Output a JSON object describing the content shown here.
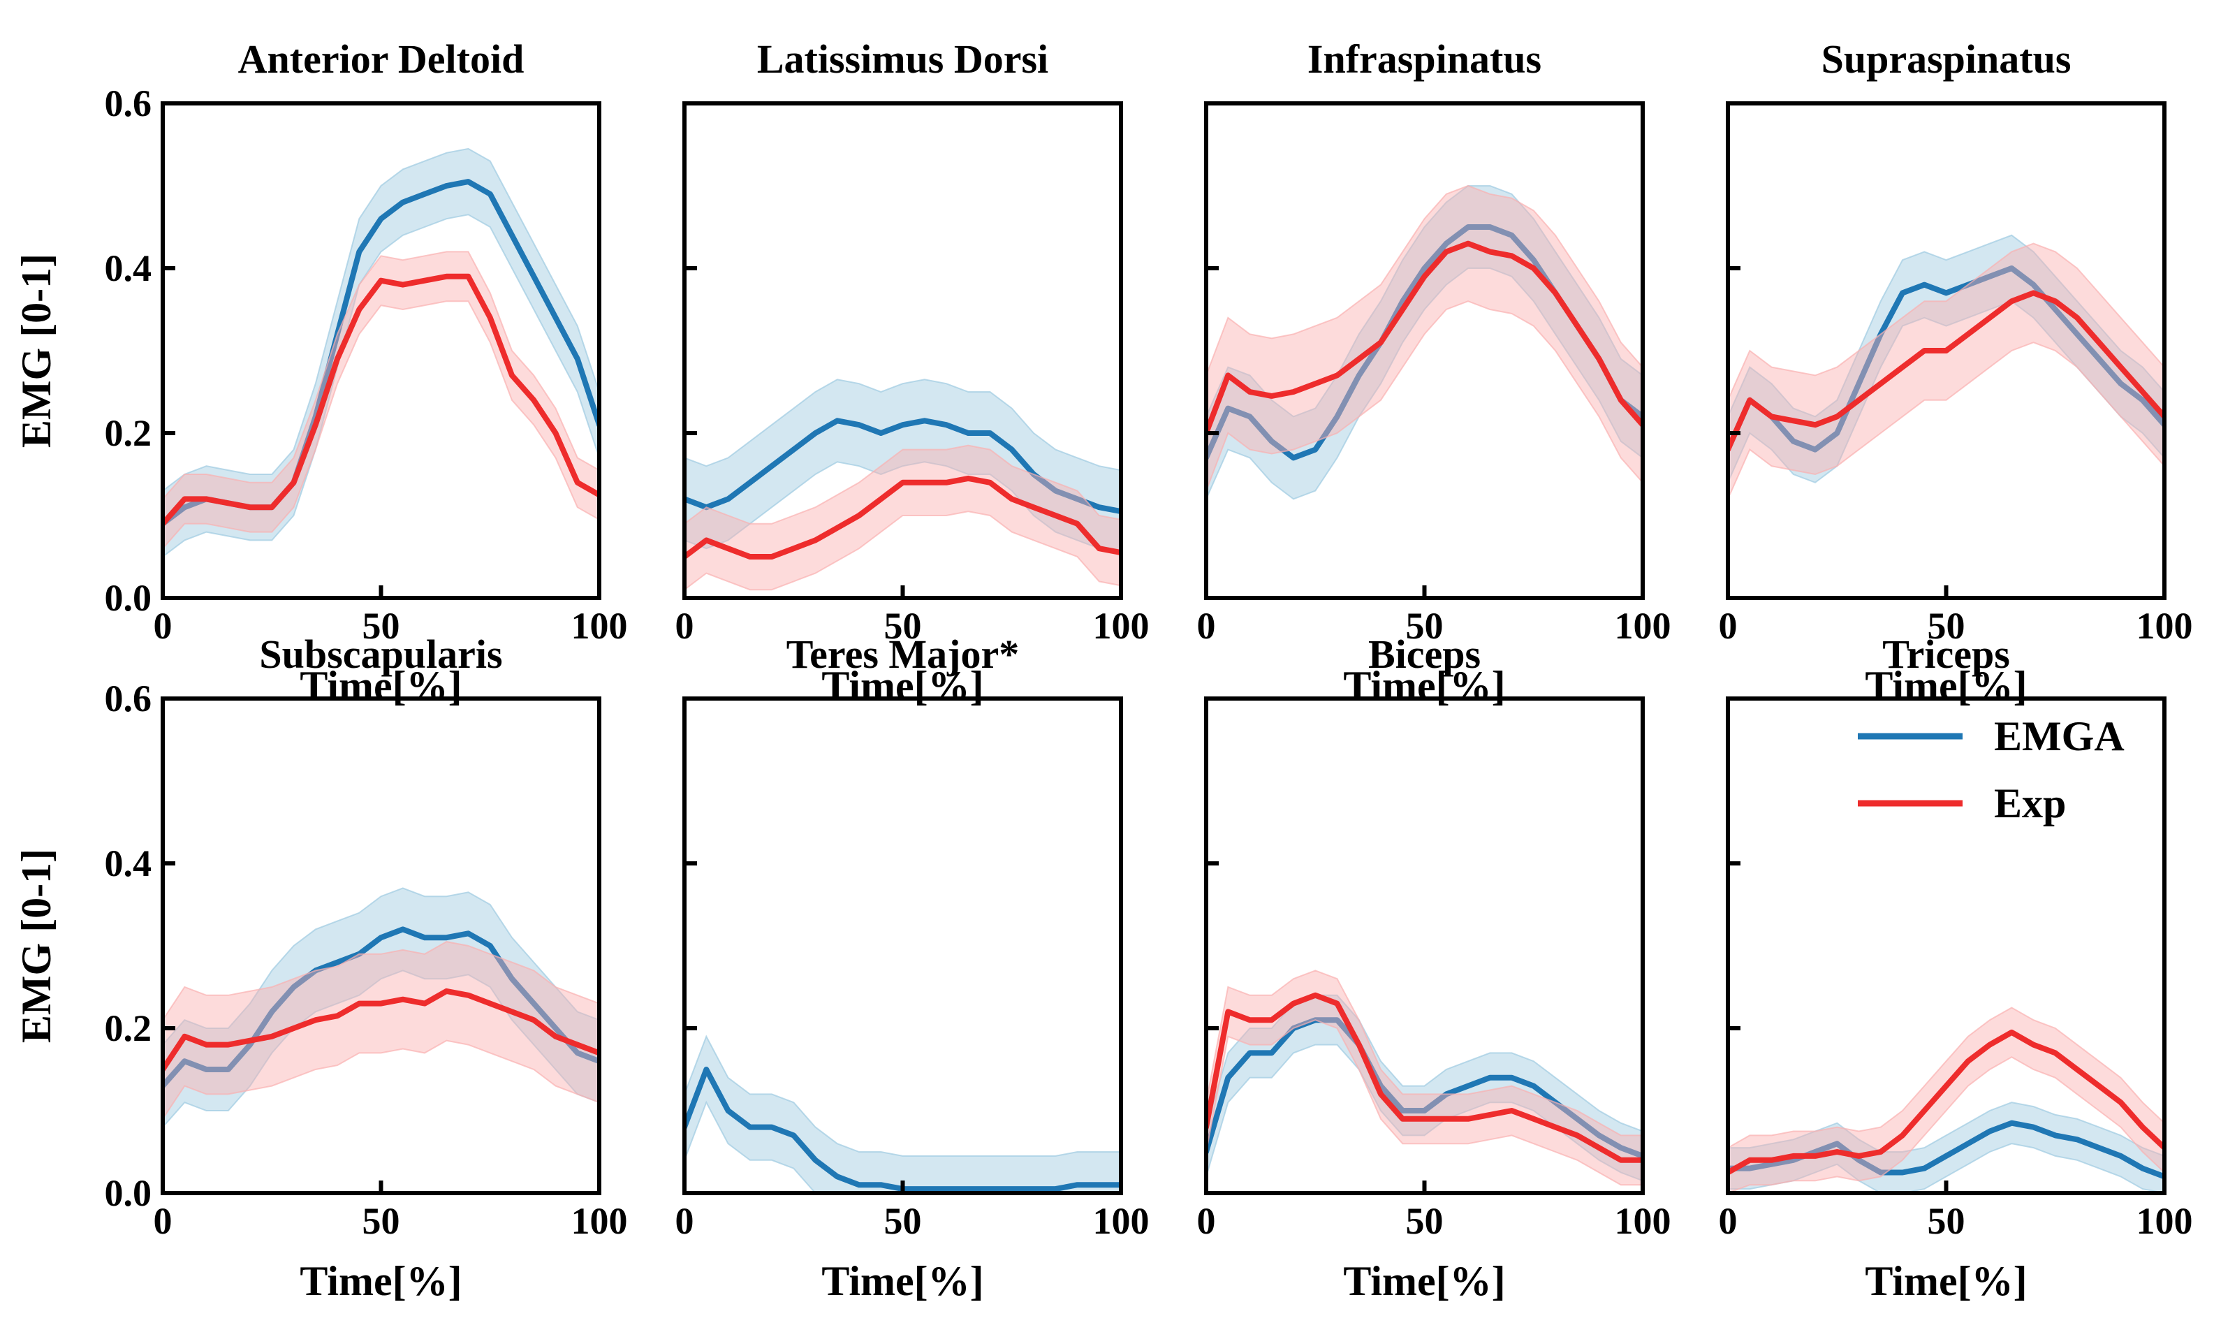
{
  "figure": {
    "ylabel": "EMG [0-1]",
    "xlabel": "Time[%]",
    "x_ticks": [
      "0",
      "50",
      "100"
    ],
    "y_ticks": [
      "0.0",
      "0.2",
      "0.4",
      "0.6"
    ],
    "legend": {
      "emga": "EMGA",
      "exp": "Exp"
    }
  },
  "colors": {
    "emga": "#1f77b4",
    "exp": "#ee2c2c",
    "emga_band": "#9ecae1",
    "exp_band": "#fab0b0"
  },
  "chart_data": [
    {
      "type": "line",
      "title": "Anterior Deltoid",
      "xlim": [
        0,
        100
      ],
      "ylim": [
        0,
        0.6
      ],
      "x": [
        0,
        5,
        10,
        15,
        20,
        25,
        30,
        35,
        40,
        45,
        50,
        55,
        60,
        65,
        70,
        75,
        80,
        85,
        90,
        95,
        100
      ],
      "series": [
        {
          "name": "EMGA",
          "values": [
            0.09,
            0.11,
            0.12,
            0.115,
            0.11,
            0.11,
            0.14,
            0.22,
            0.32,
            0.42,
            0.46,
            0.48,
            0.49,
            0.5,
            0.505,
            0.49,
            0.44,
            0.39,
            0.34,
            0.29,
            0.21
          ],
          "band": 0.04
        },
        {
          "name": "Exp",
          "values": [
            0.09,
            0.12,
            0.12,
            0.115,
            0.11,
            0.11,
            0.14,
            0.21,
            0.29,
            0.35,
            0.385,
            0.38,
            0.385,
            0.39,
            0.39,
            0.34,
            0.27,
            0.24,
            0.2,
            0.14,
            0.125
          ],
          "band": 0.03
        }
      ]
    },
    {
      "type": "line",
      "title": "Latissimus Dorsi",
      "xlim": [
        0,
        100
      ],
      "ylim": [
        0,
        0.6
      ],
      "x": [
        0,
        5,
        10,
        15,
        20,
        25,
        30,
        35,
        40,
        45,
        50,
        55,
        60,
        65,
        70,
        75,
        80,
        85,
        90,
        95,
        100
      ],
      "series": [
        {
          "name": "EMGA",
          "values": [
            0.12,
            0.11,
            0.12,
            0.14,
            0.16,
            0.18,
            0.2,
            0.215,
            0.21,
            0.2,
            0.21,
            0.215,
            0.21,
            0.2,
            0.2,
            0.18,
            0.15,
            0.13,
            0.12,
            0.11,
            0.105
          ],
          "band": 0.05
        },
        {
          "name": "Exp",
          "values": [
            0.05,
            0.07,
            0.06,
            0.05,
            0.05,
            0.06,
            0.07,
            0.085,
            0.1,
            0.12,
            0.14,
            0.14,
            0.14,
            0.145,
            0.14,
            0.12,
            0.11,
            0.1,
            0.09,
            0.06,
            0.055
          ],
          "band": 0.04
        }
      ]
    },
    {
      "type": "line",
      "title": "Infraspinatus",
      "xlim": [
        0,
        100
      ],
      "ylim": [
        0,
        0.6
      ],
      "x": [
        0,
        5,
        10,
        15,
        20,
        25,
        30,
        35,
        40,
        45,
        50,
        55,
        60,
        65,
        70,
        75,
        80,
        85,
        90,
        95,
        100
      ],
      "series": [
        {
          "name": "EMGA",
          "values": [
            0.17,
            0.23,
            0.22,
            0.19,
            0.17,
            0.18,
            0.22,
            0.27,
            0.31,
            0.36,
            0.4,
            0.43,
            0.45,
            0.45,
            0.44,
            0.41,
            0.37,
            0.33,
            0.29,
            0.24,
            0.22
          ],
          "band": 0.05
        },
        {
          "name": "Exp",
          "values": [
            0.2,
            0.27,
            0.25,
            0.245,
            0.25,
            0.26,
            0.27,
            0.29,
            0.31,
            0.35,
            0.39,
            0.42,
            0.43,
            0.42,
            0.415,
            0.4,
            0.37,
            0.33,
            0.29,
            0.24,
            0.21
          ],
          "band": 0.07
        }
      ]
    },
    {
      "type": "line",
      "title": "Supraspinatus",
      "xlim": [
        0,
        100
      ],
      "ylim": [
        0,
        0.6
      ],
      "x": [
        0,
        5,
        10,
        15,
        20,
        25,
        30,
        35,
        40,
        45,
        50,
        55,
        60,
        65,
        70,
        75,
        80,
        85,
        90,
        95,
        100
      ],
      "series": [
        {
          "name": "EMGA",
          "values": [
            0.18,
            0.24,
            0.22,
            0.19,
            0.18,
            0.2,
            0.26,
            0.32,
            0.37,
            0.38,
            0.37,
            0.38,
            0.39,
            0.4,
            0.38,
            0.35,
            0.32,
            0.29,
            0.26,
            0.24,
            0.21
          ],
          "band": 0.04
        },
        {
          "name": "Exp",
          "values": [
            0.18,
            0.24,
            0.22,
            0.215,
            0.21,
            0.22,
            0.24,
            0.26,
            0.28,
            0.3,
            0.3,
            0.32,
            0.34,
            0.36,
            0.37,
            0.36,
            0.34,
            0.31,
            0.28,
            0.25,
            0.22
          ],
          "band": 0.06
        }
      ]
    },
    {
      "type": "line",
      "title": "Subscapularis",
      "xlim": [
        0,
        100
      ],
      "ylim": [
        0,
        0.6
      ],
      "x": [
        0,
        5,
        10,
        15,
        20,
        25,
        30,
        35,
        40,
        45,
        50,
        55,
        60,
        65,
        70,
        75,
        80,
        85,
        90,
        95,
        100
      ],
      "series": [
        {
          "name": "EMGA",
          "values": [
            0.13,
            0.16,
            0.15,
            0.15,
            0.18,
            0.22,
            0.25,
            0.27,
            0.28,
            0.29,
            0.31,
            0.32,
            0.31,
            0.31,
            0.315,
            0.3,
            0.26,
            0.23,
            0.2,
            0.17,
            0.16
          ],
          "band": 0.05
        },
        {
          "name": "Exp",
          "values": [
            0.15,
            0.19,
            0.18,
            0.18,
            0.185,
            0.19,
            0.2,
            0.21,
            0.215,
            0.23,
            0.23,
            0.235,
            0.23,
            0.245,
            0.24,
            0.23,
            0.22,
            0.21,
            0.19,
            0.18,
            0.17
          ],
          "band": 0.06
        }
      ]
    },
    {
      "type": "line",
      "title": "Teres Major*",
      "xlim": [
        0,
        100
      ],
      "ylim": [
        0,
        0.6
      ],
      "x": [
        0,
        5,
        10,
        15,
        20,
        25,
        30,
        35,
        40,
        45,
        50,
        55,
        60,
        65,
        70,
        75,
        80,
        85,
        90,
        95,
        100
      ],
      "series": [
        {
          "name": "EMGA",
          "values": [
            0.08,
            0.15,
            0.1,
            0.08,
            0.08,
            0.07,
            0.04,
            0.02,
            0.01,
            0.01,
            0.005,
            0.005,
            0.005,
            0.005,
            0.005,
            0.005,
            0.005,
            0.005,
            0.01,
            0.01,
            0.01
          ],
          "band": 0.04
        }
      ]
    },
    {
      "type": "line",
      "title": "Biceps",
      "xlim": [
        0,
        100
      ],
      "ylim": [
        0,
        0.6
      ],
      "x": [
        0,
        5,
        10,
        15,
        20,
        25,
        30,
        35,
        40,
        45,
        50,
        55,
        60,
        65,
        70,
        75,
        80,
        85,
        90,
        95,
        100
      ],
      "series": [
        {
          "name": "EMGA",
          "values": [
            0.05,
            0.14,
            0.17,
            0.17,
            0.2,
            0.21,
            0.21,
            0.18,
            0.13,
            0.1,
            0.1,
            0.12,
            0.13,
            0.14,
            0.14,
            0.13,
            0.11,
            0.09,
            0.07,
            0.055,
            0.045
          ],
          "band": 0.03
        },
        {
          "name": "Exp",
          "values": [
            0.08,
            0.22,
            0.21,
            0.21,
            0.23,
            0.24,
            0.23,
            0.18,
            0.12,
            0.09,
            0.09,
            0.09,
            0.09,
            0.095,
            0.1,
            0.09,
            0.08,
            0.07,
            0.055,
            0.04,
            0.04
          ],
          "band": 0.03
        }
      ]
    },
    {
      "type": "line",
      "title": "Triceps",
      "xlim": [
        0,
        100
      ],
      "ylim": [
        0,
        0.6
      ],
      "x": [
        0,
        5,
        10,
        15,
        20,
        25,
        30,
        35,
        40,
        45,
        50,
        55,
        60,
        65,
        70,
        75,
        80,
        85,
        90,
        95,
        100
      ],
      "series": [
        {
          "name": "EMGA",
          "values": [
            0.03,
            0.03,
            0.035,
            0.04,
            0.05,
            0.06,
            0.04,
            0.025,
            0.025,
            0.03,
            0.045,
            0.06,
            0.075,
            0.085,
            0.08,
            0.07,
            0.065,
            0.055,
            0.045,
            0.03,
            0.02
          ],
          "band": 0.025
        },
        {
          "name": "Exp",
          "values": [
            0.025,
            0.04,
            0.04,
            0.045,
            0.045,
            0.05,
            0.045,
            0.05,
            0.07,
            0.1,
            0.13,
            0.16,
            0.18,
            0.195,
            0.18,
            0.17,
            0.15,
            0.13,
            0.11,
            0.08,
            0.055
          ],
          "band": 0.03
        }
      ]
    }
  ]
}
